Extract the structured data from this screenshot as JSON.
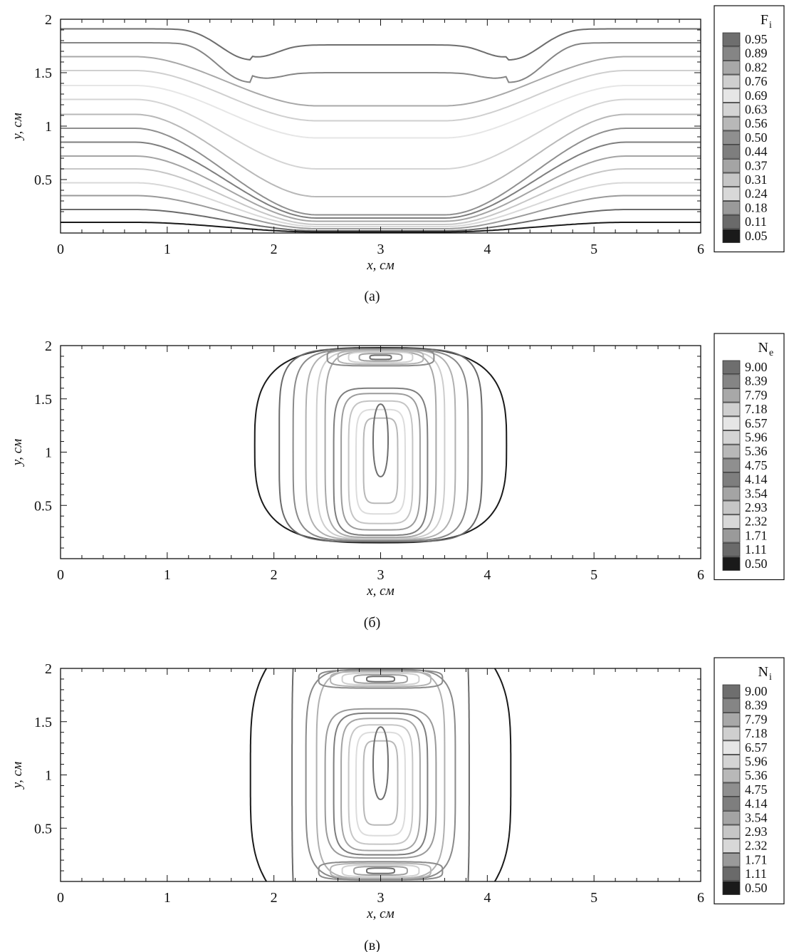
{
  "figure": {
    "panels": [
      "(а)",
      "(б)",
      "(в)"
    ]
  },
  "chart_data": [
    {
      "type": "contour",
      "panel_label": "(а)",
      "xlabel": "x, см",
      "ylabel": "y, см",
      "xlim": [
        0,
        6
      ],
      "ylim": [
        0,
        2
      ],
      "xticks": [
        "0",
        "1",
        "2",
        "3",
        "4",
        "5",
        "6"
      ],
      "yticks": [
        "0.5",
        "1",
        "1.5",
        "2"
      ],
      "legend": {
        "title": "F",
        "title_sub": "i",
        "levels": [
          "0.95",
          "0.89",
          "0.82",
          "0.76",
          "0.69",
          "0.63",
          "0.56",
          "0.50",
          "0.44",
          "0.37",
          "0.31",
          "0.24",
          "0.18",
          "0.11",
          "0.05"
        ],
        "colors": [
          "#6e6e6e",
          "#858585",
          "#a8a8a8",
          "#cfcfcf",
          "#e6e6e6",
          "#d4d4d4",
          "#b8b8b8",
          "#8f8f8f",
          "#7e7e7e",
          "#a4a4a4",
          "#c6c6c6",
          "#d8d8d8",
          "#9a9a9a",
          "#6a6a6a",
          "#1a1a1a"
        ]
      },
      "contours": [
        {
          "level": "0.95",
          "edge_y": 1.91,
          "center_y": 1.76,
          "dip_y": 1.62
        },
        {
          "level": "0.89",
          "edge_y": 1.78,
          "center_y": 1.5,
          "dip_y": 1.41
        },
        {
          "level": "0.82",
          "edge_y": 1.65,
          "center_y": 1.19
        },
        {
          "level": "0.76",
          "edge_y": 1.52,
          "center_y": 1.05
        },
        {
          "level": "0.69",
          "edge_y": 1.38,
          "center_y": 0.89
        },
        {
          "level": "0.63",
          "edge_y": 1.25,
          "center_y": 0.6
        },
        {
          "level": "0.56",
          "edge_y": 1.11,
          "center_y": 0.34
        },
        {
          "level": "0.50",
          "edge_y": 0.98,
          "center_y": 0.17
        },
        {
          "level": "0.44",
          "edge_y": 0.85,
          "center_y": 0.14
        },
        {
          "level": "0.37",
          "edge_y": 0.72,
          "center_y": 0.11
        },
        {
          "level": "0.31",
          "edge_y": 0.6,
          "center_y": 0.08
        },
        {
          "level": "0.24",
          "edge_y": 0.47,
          "center_y": 0.06
        },
        {
          "level": "0.18",
          "edge_y": 0.35,
          "center_y": 0.04
        },
        {
          "level": "0.11",
          "edge_y": 0.22,
          "center_y": 0.02
        },
        {
          "level": "0.05",
          "edge_y": 0.1,
          "center_y": 0.01
        }
      ]
    },
    {
      "type": "contour",
      "panel_label": "(б)",
      "xlabel": "x, см",
      "ylabel": "y, см",
      "xlim": [
        0,
        6
      ],
      "ylim": [
        0,
        2
      ],
      "xticks": [
        "0",
        "1",
        "2",
        "3",
        "4",
        "5",
        "6"
      ],
      "yticks": [
        "0.5",
        "1",
        "1.5",
        "2"
      ],
      "legend": {
        "title": "N",
        "title_sub": "e",
        "levels": [
          "9.00",
          "8.39",
          "7.79",
          "7.18",
          "6.57",
          "5.96",
          "5.36",
          "4.75",
          "4.14",
          "3.54",
          "2.93",
          "2.32",
          "1.71",
          "1.11",
          "0.50"
        ],
        "colors": [
          "#6e6e6e",
          "#858585",
          "#a8a8a8",
          "#cfcfcf",
          "#e6e6e6",
          "#d4d4d4",
          "#b8b8b8",
          "#8f8f8f",
          "#7e7e7e",
          "#a4a4a4",
          "#c6c6c6",
          "#d8d8d8",
          "#9a9a9a",
          "#6a6a6a",
          "#1a1a1a"
        ]
      },
      "rings": [
        {
          "x_half_width": 1.18,
          "y_range": [
            0.15,
            1.98
          ],
          "color": "#1a1a1a"
        },
        {
          "x_half_width": 0.95,
          "y_range": [
            0.16,
            1.97
          ],
          "color": "#6a6a6a"
        },
        {
          "x_half_width": 0.82,
          "y_range": [
            0.17,
            1.96
          ],
          "color": "#8a8a8a"
        },
        {
          "x_half_width": 0.7,
          "y_range": [
            0.18,
            1.96
          ],
          "color": "#b0b0b0"
        },
        {
          "x_half_width": 0.6,
          "y_range": [
            0.19,
            1.95
          ],
          "color": "#cdcdcd"
        },
        {
          "x_half_width": 0.52,
          "y_range": [
            0.2,
            1.94
          ],
          "color": "#a8a8a8"
        },
        {
          "x_half_width": 0.44,
          "y_range": [
            0.22,
            1.6
          ],
          "color": "#7e7e7e"
        },
        {
          "x_half_width": 0.37,
          "y_range": [
            0.27,
            1.55
          ],
          "color": "#9c9c9c"
        },
        {
          "x_half_width": 0.3,
          "y_range": [
            0.33,
            1.48
          ],
          "color": "#c4c4c4"
        },
        {
          "x_half_width": 0.23,
          "y_range": [
            0.42,
            1.4
          ],
          "color": "#dcdcdc"
        },
        {
          "x_half_width": 0.16,
          "y_range": [
            0.52,
            1.32
          ],
          "color": "#b8b8b8"
        },
        {
          "x_half_width": 0.07,
          "y_range": [
            0.77,
            1.45
          ],
          "color": "#6e6e6e"
        }
      ],
      "edge_cells": [
        {
          "y_center": 1.89,
          "x_half_widths": [
            0.5,
            0.4,
            0.3,
            0.2,
            0.1
          ],
          "y_half_heights": [
            0.08,
            0.065,
            0.05,
            0.035,
            0.02
          ]
        }
      ]
    },
    {
      "type": "contour",
      "panel_label": "(в)",
      "xlabel": "x, см",
      "ylabel": "y, см",
      "xlim": [
        0,
        6
      ],
      "ylim": [
        0,
        2
      ],
      "xticks": [
        "0",
        "1",
        "2",
        "3",
        "4",
        "5",
        "6"
      ],
      "yticks": [
        "0.5",
        "1",
        "1.5",
        "2"
      ],
      "legend": {
        "title": "N",
        "title_sub": "i",
        "levels": [
          "9.00",
          "8.39",
          "7.79",
          "7.18",
          "6.57",
          "5.96",
          "5.36",
          "4.75",
          "4.14",
          "3.54",
          "2.93",
          "2.32",
          "1.71",
          "1.11",
          "0.50"
        ],
        "colors": [
          "#6e6e6e",
          "#858585",
          "#a8a8a8",
          "#cfcfcf",
          "#e6e6e6",
          "#d4d4d4",
          "#b8b8b8",
          "#8f8f8f",
          "#7e7e7e",
          "#a4a4a4",
          "#c6c6c6",
          "#d8d8d8",
          "#9a9a9a",
          "#6a6a6a",
          "#1a1a1a"
        ]
      },
      "side_lines": [
        {
          "x_outer": 1.78,
          "x_ends": 1.93,
          "color": "#1a1a1a"
        },
        {
          "x_outer": 2.17,
          "x_ends": 2.18,
          "color": "#6a6a6a"
        }
      ],
      "rings": [
        {
          "x_half_width": 0.7,
          "y_range": [
            0.02,
            1.99
          ],
          "color": "#8a8a8a"
        },
        {
          "x_half_width": 0.6,
          "y_range": [
            0.03,
            1.98
          ],
          "color": "#b0b0b0"
        },
        {
          "x_half_width": 0.52,
          "y_range": [
            0.22,
            1.62
          ],
          "color": "#9a9a9a"
        },
        {
          "x_half_width": 0.44,
          "y_range": [
            0.25,
            1.58
          ],
          "color": "#7e7e7e"
        },
        {
          "x_half_width": 0.37,
          "y_range": [
            0.29,
            1.53
          ],
          "color": "#a4a4a4"
        },
        {
          "x_half_width": 0.3,
          "y_range": [
            0.35,
            1.47
          ],
          "color": "#c6c6c6"
        },
        {
          "x_half_width": 0.23,
          "y_range": [
            0.43,
            1.4
          ],
          "color": "#dcdcdc"
        },
        {
          "x_half_width": 0.16,
          "y_range": [
            0.53,
            1.32
          ],
          "color": "#b8b8b8"
        },
        {
          "x_half_width": 0.07,
          "y_range": [
            0.77,
            1.45
          ],
          "color": "#6e6e6e"
        }
      ],
      "edge_cells": [
        {
          "y_center": 1.9,
          "x_half_widths": [
            0.58,
            0.47,
            0.36,
            0.25,
            0.13
          ],
          "y_half_heights": [
            0.085,
            0.07,
            0.055,
            0.04,
            0.025
          ]
        },
        {
          "y_center": 0.1,
          "x_half_widths": [
            0.58,
            0.47,
            0.36,
            0.25,
            0.13
          ],
          "y_half_heights": [
            0.085,
            0.07,
            0.055,
            0.04,
            0.025
          ]
        }
      ]
    }
  ]
}
